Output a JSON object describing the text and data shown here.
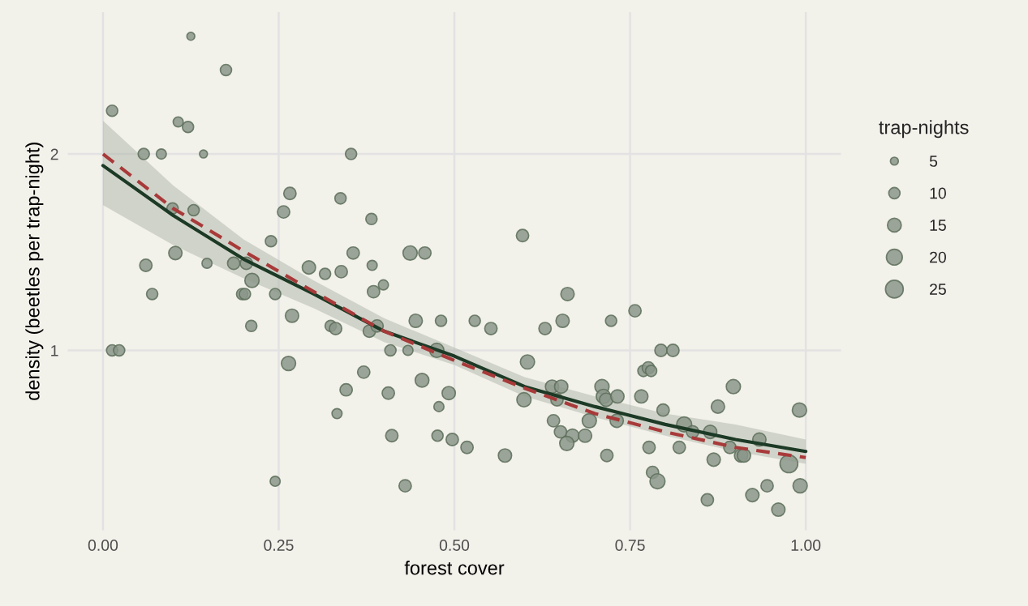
{
  "chart_data": {
    "type": "bubble",
    "xlabel": "forest cover",
    "ylabel": "density (beetles per trap-night)",
    "legend_title": "trap-nights",
    "grid": true,
    "log": "y",
    "xlim": [
      -0.05,
      1.05
    ],
    "xticks": [
      {
        "value": 0,
        "label": "0.00"
      },
      {
        "value": 0.25,
        "label": "0.25"
      },
      {
        "value": 0.5,
        "label": "0.50"
      },
      {
        "value": 0.75,
        "label": "0.75"
      },
      {
        "value": 1,
        "label": "1.00"
      }
    ],
    "ylim": [
      0.53,
      3.3
    ],
    "yticks": [
      1,
      2
    ],
    "size_legend": [
      5,
      10,
      15,
      20,
      25
    ],
    "series": [
      {
        "marker": "circle",
        "color": "#8b978a",
        "x": [
          0.125,
          0.175,
          0.013,
          0.107,
          0.121,
          0.058,
          0.083,
          0.143,
          0.353,
          0.266,
          0.338,
          0.257,
          0.382,
          0.099,
          0.129,
          0.239,
          0.103,
          0.061,
          0.148,
          0.186,
          0.204,
          0.293,
          0.316,
          0.339,
          0.356,
          0.383,
          0.437,
          0.458,
          0.212,
          0.07,
          0.198,
          0.202,
          0.245,
          0.269,
          0.211,
          0.324,
          0.331,
          0.379,
          0.39,
          0.385,
          0.399,
          0.445,
          0.013,
          0.023,
          0.409,
          0.434,
          0.475,
          0.264,
          0.371,
          0.454,
          0.346,
          0.406,
          0.333,
          0.411,
          0.43,
          0.245,
          0.478,
          0.476,
          0.597,
          0.661,
          0.654,
          0.757,
          0.481,
          0.529,
          0.552,
          0.629,
          0.723,
          0.794,
          0.811,
          0.604,
          0.769,
          0.776,
          0.78,
          0.492,
          0.599,
          0.639,
          0.652,
          0.646,
          0.71,
          0.712,
          0.716,
          0.732,
          0.766,
          0.797,
          0.875,
          0.897,
          0.991,
          0.641,
          0.692,
          0.731,
          0.827,
          0.839,
          0.864,
          0.934,
          0.497,
          0.518,
          0.572,
          0.651,
          0.668,
          0.686,
          0.66,
          0.717,
          0.777,
          0.82,
          0.892,
          0.869,
          0.908,
          0.912,
          0.976,
          0.782,
          0.789,
          0.992,
          0.924,
          0.945,
          0.86,
          0.961
        ],
        "values": [
          3.03,
          2.69,
          2.33,
          2.24,
          2.2,
          2.0,
          2.0,
          2.0,
          2.0,
          1.74,
          1.71,
          1.63,
          1.59,
          1.65,
          1.64,
          1.47,
          1.41,
          1.35,
          1.36,
          1.36,
          1.36,
          1.34,
          1.31,
          1.32,
          1.41,
          1.35,
          1.41,
          1.41,
          1.28,
          1.22,
          1.22,
          1.22,
          1.22,
          1.13,
          1.09,
          1.09,
          1.08,
          1.07,
          1.09,
          1.23,
          1.26,
          1.11,
          1.0,
          1.0,
          1.0,
          1.0,
          1.0,
          0.955,
          0.926,
          0.9,
          0.87,
          0.86,
          0.8,
          0.74,
          0.62,
          0.63,
          0.82,
          0.74,
          1.5,
          1.22,
          1.11,
          1.15,
          1.11,
          1.11,
          1.08,
          1.08,
          1.11,
          1.0,
          1.0,
          0.96,
          0.93,
          0.94,
          0.93,
          0.86,
          0.84,
          0.88,
          0.88,
          0.84,
          0.88,
          0.85,
          0.84,
          0.85,
          0.85,
          0.81,
          0.82,
          0.88,
          0.81,
          0.78,
          0.78,
          0.78,
          0.77,
          0.75,
          0.75,
          0.73,
          0.73,
          0.71,
          0.69,
          0.75,
          0.74,
          0.74,
          0.72,
          0.69,
          0.71,
          0.71,
          0.71,
          0.68,
          0.69,
          0.69,
          0.67,
          0.65,
          0.63,
          0.62,
          0.6,
          0.62,
          0.59,
          0.57
        ],
        "sizes": [
          5,
          10,
          10,
          8,
          10,
          10,
          8,
          5,
          10,
          12,
          10,
          12,
          10,
          10,
          10,
          10,
          14,
          12,
          8,
          12,
          12,
          14,
          10,
          12,
          12,
          8,
          16,
          12,
          16,
          10,
          10,
          10,
          10,
          14,
          10,
          10,
          12,
          12,
          12,
          12,
          8,
          14,
          10,
          10,
          10,
          8,
          16,
          16,
          12,
          15,
          12,
          12,
          8,
          12,
          12,
          8,
          8,
          10,
          12,
          14,
          14,
          12,
          10,
          10,
          12,
          12,
          10,
          12,
          12,
          16,
          10,
          12,
          10,
          14,
          16,
          14,
          14,
          12,
          16,
          16,
          14,
          14,
          14,
          12,
          14,
          16,
          16,
          12,
          16,
          14,
          18,
          12,
          14,
          14,
          12,
          12,
          14,
          12,
          14,
          14,
          16,
          12,
          12,
          12,
          12,
          14,
          14,
          14,
          25,
          12,
          18,
          16,
          14,
          12,
          12,
          14
        ]
      },
      {
        "type": "line",
        "color": "#1c3a26",
        "line_style": "solid",
        "x": [
          0,
          0.1,
          0.2,
          0.3,
          0.4,
          0.5,
          0.6,
          0.7,
          0.8,
          0.9,
          1.0
        ],
        "values": [
          1.92,
          1.61,
          1.38,
          1.22,
          1.07,
          0.98,
          0.88,
          0.82,
          0.77,
          0.73,
          0.7
        ],
        "lower": [
          1.67,
          1.45,
          1.29,
          1.16,
          1.03,
          0.95,
          0.85,
          0.79,
          0.74,
          0.7,
          0.67
        ],
        "upper": [
          2.25,
          1.79,
          1.48,
          1.28,
          1.12,
          1.01,
          0.91,
          0.85,
          0.8,
          0.77,
          0.73
        ]
      },
      {
        "type": "line",
        "color": "#a83a3a",
        "line_style": "dashed",
        "x": [
          0,
          0.1,
          0.2,
          0.3,
          0.4,
          0.5,
          0.6,
          0.7,
          0.8,
          0.9,
          1.0
        ],
        "values": [
          2.0,
          1.65,
          1.42,
          1.23,
          1.07,
          0.965,
          0.875,
          0.8,
          0.75,
          0.71,
          0.685
        ]
      }
    ]
  }
}
